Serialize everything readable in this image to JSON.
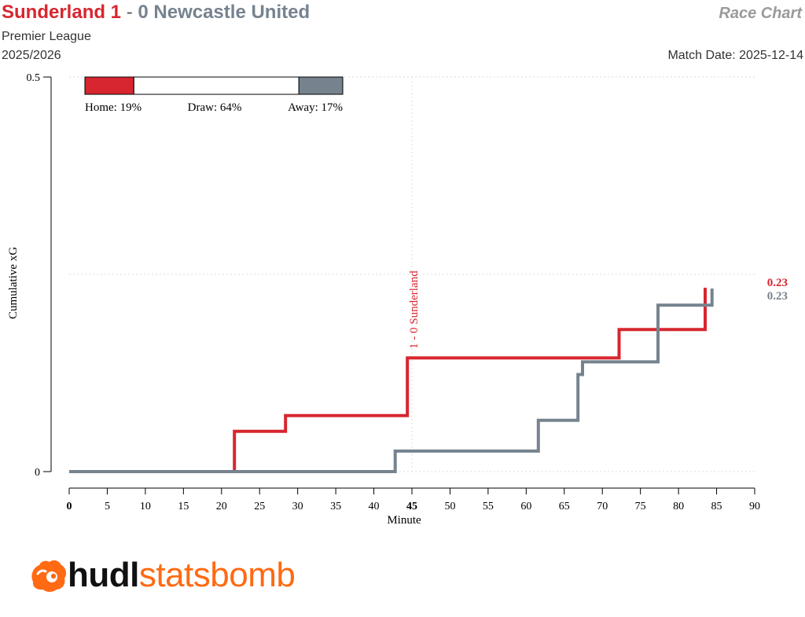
{
  "header": {
    "home_team": "Sunderland 1",
    "separator": "-",
    "away_team": "0 Newcastle United",
    "chart_kind": "Race Chart",
    "competition": "Premier League",
    "season": "2025/2026",
    "match_date_label": "Match Date:",
    "match_date": "2025-12-14"
  },
  "probability_bar": {
    "home": 19,
    "draw": 64,
    "away": 17,
    "home_label": "Home: 19%",
    "draw_label": "Draw: 64%",
    "away_label": "Away: 17%"
  },
  "logo": {
    "part1": "hudl",
    "part2": "statsbomb",
    "icon": "statsbomb-flame-icon"
  },
  "colors": {
    "home": "#d7262f",
    "away": "#76838f",
    "logo_accent": "#ff6a13"
  },
  "chart_data": {
    "type": "line",
    "step": true,
    "xlabel": "Minute",
    "ylabel": "Cumulative xG",
    "xlim": [
      0,
      90
    ],
    "ylim": [
      0,
      0.5
    ],
    "xticks": [
      0,
      5,
      10,
      15,
      20,
      25,
      30,
      35,
      40,
      45,
      50,
      55,
      60,
      65,
      70,
      75,
      80,
      85,
      90
    ],
    "xtick_labels": [
      "0",
      "5",
      "10",
      "15",
      "20",
      "25",
      "30",
      "35",
      "40",
      "45",
      "50",
      "55",
      "60",
      "65",
      "70",
      "75",
      "80",
      "85",
      "90"
    ],
    "bold_xticks": [
      0,
      45
    ],
    "yticks": [
      0,
      0.5
    ],
    "ytick_labels": [
      "0",
      "0.5"
    ],
    "grid": "dotted",
    "series": [
      {
        "name": "Sunderland",
        "color": "#d7262f",
        "final_label": "0.23",
        "points": [
          [
            0,
            0
          ],
          [
            21.7,
            0
          ],
          [
            21.7,
            0.051
          ],
          [
            28.4,
            0.051
          ],
          [
            28.4,
            0.071
          ],
          [
            44.4,
            0.071
          ],
          [
            44.4,
            0.144
          ],
          [
            72.2,
            0.144
          ],
          [
            72.2,
            0.18
          ],
          [
            83.5,
            0.18
          ],
          [
            83.5,
            0.233
          ]
        ]
      },
      {
        "name": "Newcastle United",
        "color": "#76838f",
        "final_label": "0.23",
        "points": [
          [
            0,
            0
          ],
          [
            42.8,
            0
          ],
          [
            42.8,
            0.026
          ],
          [
            61.6,
            0.026
          ],
          [
            61.6,
            0.065
          ],
          [
            66.8,
            0.065
          ],
          [
            66.8,
            0.123
          ],
          [
            67.4,
            0.123
          ],
          [
            67.4,
            0.139
          ],
          [
            77.3,
            0.139
          ],
          [
            77.3,
            0.211
          ],
          [
            84.4,
            0.211
          ],
          [
            84.4,
            0.232
          ]
        ]
      }
    ],
    "annotations": [
      {
        "x": 45,
        "text": "1 - 0 Sunderland",
        "color": "#d7262f"
      }
    ]
  }
}
